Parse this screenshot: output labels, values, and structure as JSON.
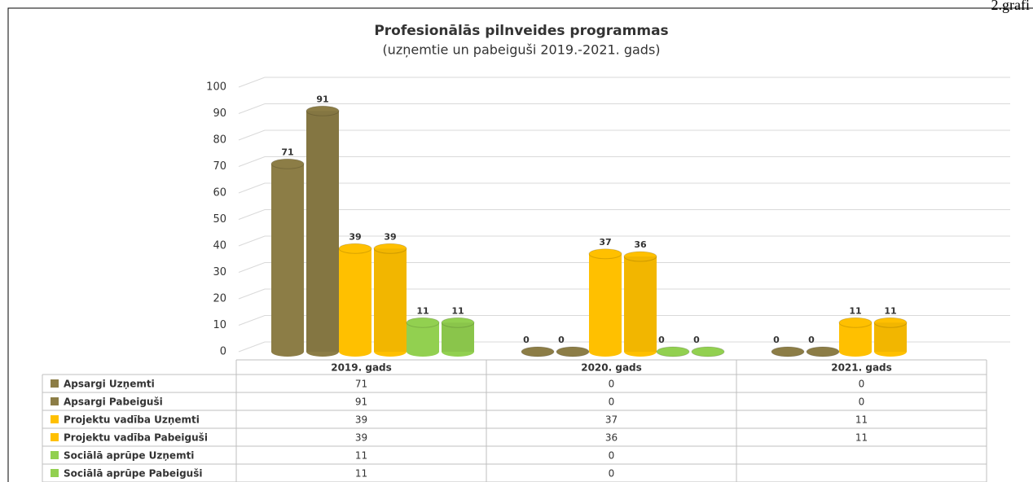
{
  "page_label": "2.grafi",
  "chart_data": {
    "type": "bar",
    "title": "Profesionālās pilnveides programmas",
    "subtitle": "(uzņemtie un pabeiguši 2019.-2021. gads)",
    "categories": [
      "2019. gads",
      "2020. gads",
      "2021. gads"
    ],
    "series": [
      {
        "name": "Apsargi Uzņemti",
        "color": "#8c7d46",
        "values": [
          71,
          0,
          0
        ]
      },
      {
        "name": "Apsargi Pabeiguši",
        "color": "#8c7d46",
        "values": [
          91,
          0,
          0
        ]
      },
      {
        "name": "Projektu vadība Uzņemti",
        "color": "#ffc000",
        "values": [
          39,
          37,
          11
        ]
      },
      {
        "name": "Projektu vadība Pabeiguši",
        "color": "#ffc000",
        "values": [
          39,
          36,
          11
        ]
      },
      {
        "name": "Sociālā aprūpe Uzņemti",
        "color": "#92d050",
        "values": [
          11,
          0,
          null
        ]
      },
      {
        "name": "Sociālā aprūpe Pabeiguši",
        "color": "#92d050",
        "values": [
          11,
          0,
          null
        ]
      }
    ],
    "ylim": [
      0,
      100
    ],
    "yticks": [
      0,
      10,
      20,
      30,
      40,
      50,
      60,
      70,
      80,
      90,
      100
    ],
    "grid": true,
    "data_table": true
  }
}
